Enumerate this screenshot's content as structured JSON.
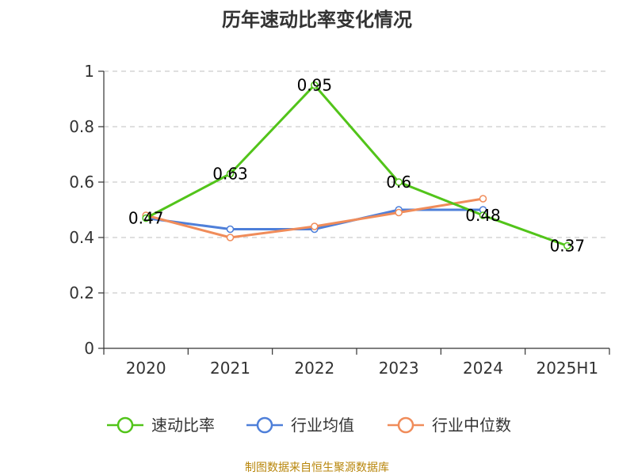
{
  "chart_data": {
    "type": "line",
    "title": "历年速动比率变化情况",
    "categories": [
      "2020",
      "2021",
      "2022",
      "2023",
      "2024",
      "2025H1"
    ],
    "ylim": [
      0,
      1
    ],
    "yticks": [
      "0",
      "0.2",
      "0.4",
      "0.6",
      "0.8",
      "1"
    ],
    "yticks_values": [
      0,
      0.2,
      0.4,
      0.6,
      0.8,
      1
    ],
    "grid": true,
    "legend_position": "bottom",
    "series": [
      {
        "name": "速动比率",
        "color": "#52c41a",
        "values": [
          0.47,
          0.63,
          0.95,
          0.6,
          0.48,
          0.37
        ],
        "labels": [
          "0.47",
          "0.63",
          "0.95",
          "0.6",
          "0.48",
          "0.37"
        ]
      },
      {
        "name": "行业均值",
        "color": "#4e7fd9",
        "values": [
          0.47,
          0.43,
          0.43,
          0.5,
          0.5,
          null
        ]
      },
      {
        "name": "行业中位数",
        "color": "#f08c5a",
        "values": [
          0.48,
          0.4,
          0.44,
          0.49,
          0.54,
          null
        ]
      }
    ],
    "source": "制图数据来自恒生聚源数据库"
  }
}
